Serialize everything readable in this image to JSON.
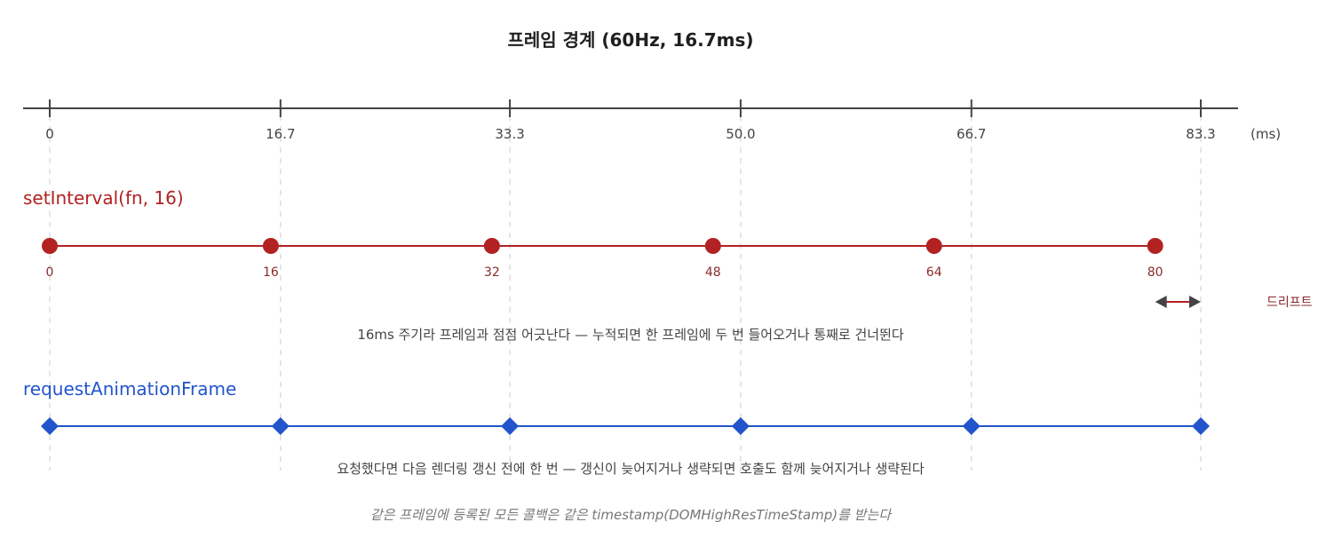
{
  "title": "프레임 경계 (60Hz, 16.7ms)",
  "axis": {
    "ticks": [
      "0",
      "16.7",
      "33.3",
      "50.0",
      "66.7",
      "83.3"
    ],
    "unit": "(ms)",
    "range": [
      0,
      83.3
    ]
  },
  "colors": {
    "axis": "#444444",
    "grid": "#dddddd",
    "interval": "#b22222",
    "raf": "#2255cc",
    "label_interval": "#8b2a2a"
  },
  "chart_data": {
    "type": "timeline",
    "frame_boundaries": [
      0,
      16.7,
      33.3,
      50.0,
      66.7,
      83.3
    ],
    "series": [
      {
        "name": "setInterval(fn, 16)",
        "marker": "circle",
        "x": [
          0,
          16,
          32,
          48,
          64,
          80
        ],
        "labels": [
          "0",
          "16",
          "32",
          "48",
          "64",
          "80"
        ]
      },
      {
        "name": "requestAnimationFrame",
        "marker": "diamond",
        "x": [
          0,
          16.7,
          33.3,
          50.0,
          66.7,
          83.3
        ]
      }
    ],
    "drift": {
      "from": 80,
      "to": 83.3,
      "label": "드리프트"
    }
  },
  "notes": {
    "interval": "16ms 주기라 프레임과 점점 어긋난다 — 누적되면 한 프레임에 두 번 들어오거나 통째로 건너뛴다",
    "raf": "요청했다면 다음 렌더링 갱신 전에 한 번 — 갱신이 늦어지거나 생략되면 호출도 함께 늦어지거나 생략된다",
    "footnote": "같은 프레임에 등록된 모든 콜백은 같은 timestamp(DOMHighResTimeStamp)를 받는다"
  }
}
